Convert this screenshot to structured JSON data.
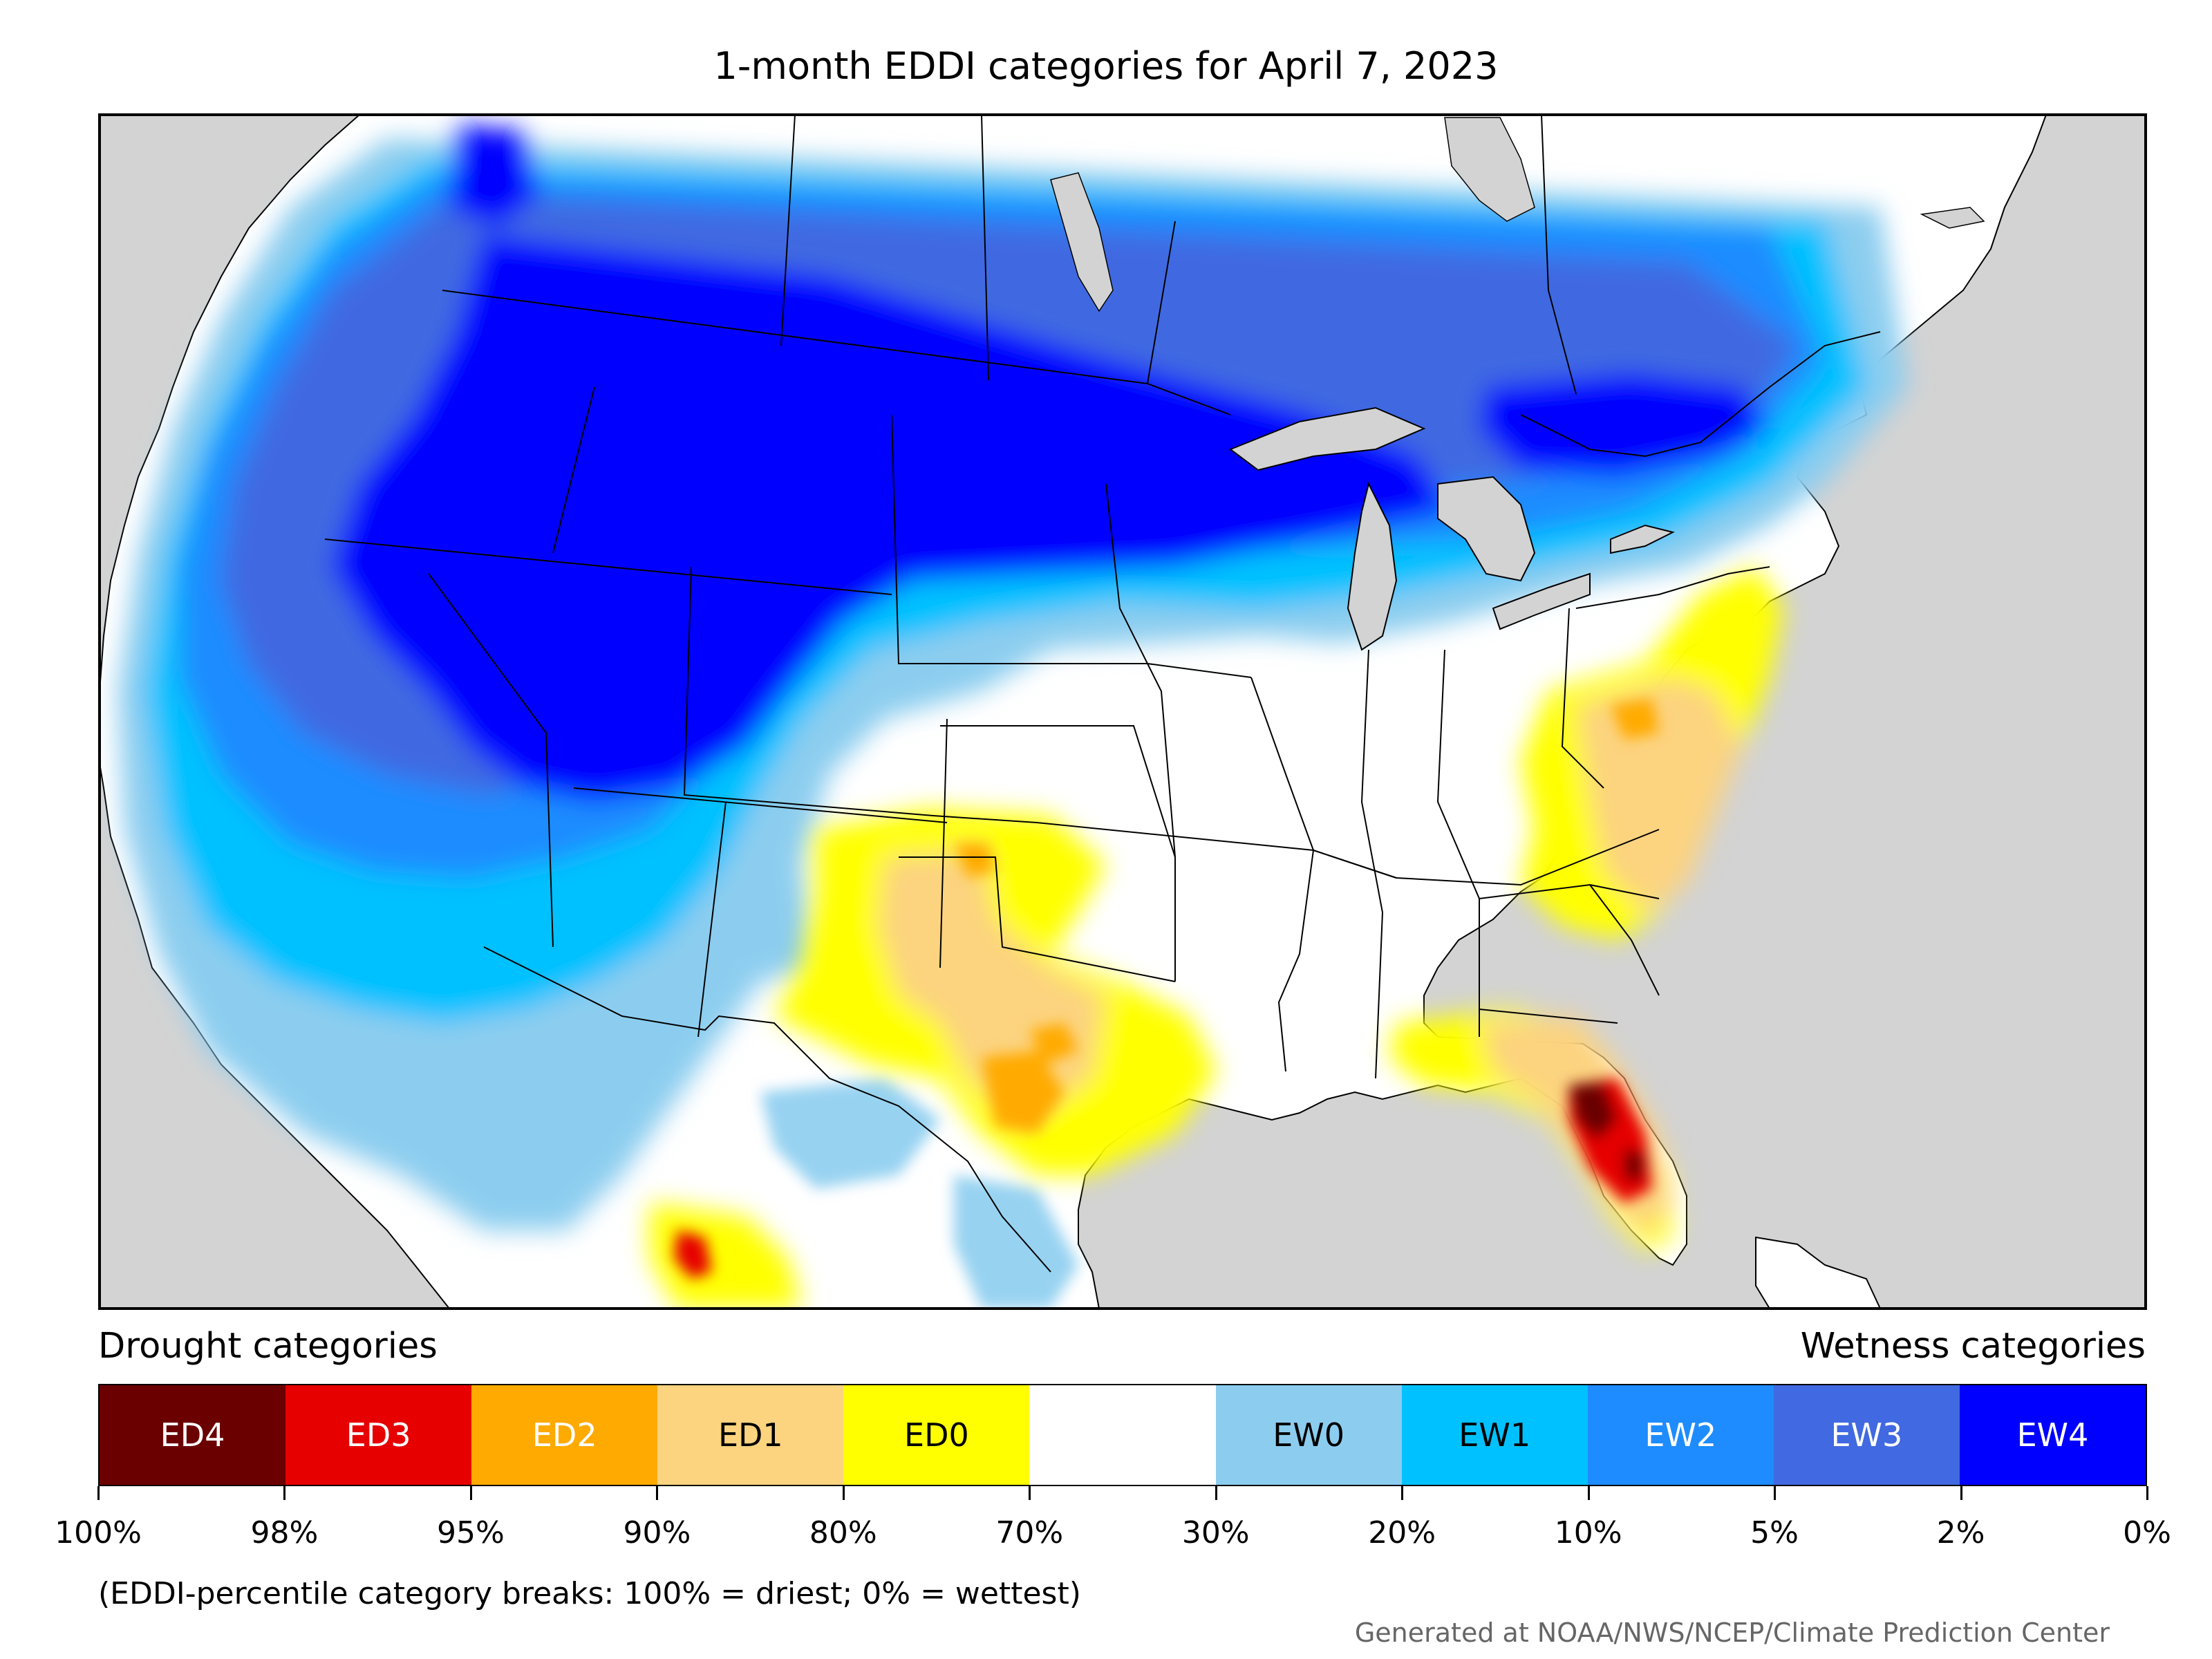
{
  "title": "1-month EDDI categories for April 7, 2023",
  "legend": {
    "drought_heading": "Drought categories",
    "wetness_heading": "Wetness categories",
    "categories": [
      {
        "label": "ED4",
        "color": "#6b0000",
        "text_color": "#ffffff"
      },
      {
        "label": "ED3",
        "color": "#e60000",
        "text_color": "#ffffff"
      },
      {
        "label": "ED2",
        "color": "#ffaa00",
        "text_color": "#ffffff"
      },
      {
        "label": "ED1",
        "color": "#fcd37f",
        "text_color": "#000000"
      },
      {
        "label": "ED0",
        "color": "#ffff00",
        "text_color": "#000000"
      },
      {
        "label": "",
        "color": "#ffffff",
        "text_color": "#000000"
      },
      {
        "label": "EW0",
        "color": "#8ccdef",
        "text_color": "#000000"
      },
      {
        "label": "EW1",
        "color": "#00c1ff",
        "text_color": "#000000"
      },
      {
        "label": "EW2",
        "color": "#1e8cff",
        "text_color": "#ffffff"
      },
      {
        "label": "EW3",
        "color": "#4169e1",
        "text_color": "#ffffff"
      },
      {
        "label": "EW4",
        "color": "#0000ff",
        "text_color": "#ffffff"
      }
    ],
    "breaks": [
      "100%",
      "98%",
      "95%",
      "90%",
      "80%",
      "70%",
      "30%",
      "20%",
      "10%",
      "5%",
      "2%",
      "0%"
    ]
  },
  "note": "(EDDI-percentile category breaks: 100% = driest; 0% = wettest)",
  "credit": "Generated at NOAA/NWS/NCEP/Climate Prediction Center",
  "map": {
    "ocean_color": "#d3d3d3",
    "land_color": "#ffffff",
    "lakes_color": "#d3d3d3"
  }
}
